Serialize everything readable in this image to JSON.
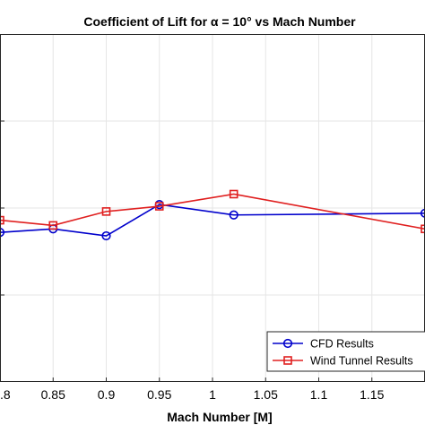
{
  "chart_data": {
    "type": "line",
    "title": "Coefficient of Lift for α = 10° vs Mach Number",
    "xlabel": "Mach Number [M]",
    "ylabel": "",
    "xlim": [
      0.8,
      1.2
    ],
    "xticks": [
      0.8,
      0.85,
      0.9,
      0.95,
      1,
      1.05,
      1.1,
      1.15
    ],
    "xtick_labels": [
      ".8",
      "0.85",
      "0.9",
      "0.95",
      "1",
      "1.05",
      "1.1",
      "1.15"
    ],
    "ylim": [
      0,
      1
    ],
    "grid": true,
    "legend_position": "bottom-right",
    "series": [
      {
        "name": "CFD Results",
        "color": "#0000cc",
        "marker": "circle",
        "x": [
          0.8,
          0.85,
          0.9,
          0.95,
          1.02,
          1.2
        ],
        "y": [
          0.43,
          0.44,
          0.42,
          0.51,
          0.48,
          0.485
        ]
      },
      {
        "name": "Wind Tunnel Results",
        "color": "#e02020",
        "marker": "square",
        "x": [
          0.8,
          0.85,
          0.9,
          0.95,
          1.02,
          1.2
        ],
        "y": [
          0.465,
          0.45,
          0.49,
          0.505,
          0.54,
          0.44
        ]
      }
    ]
  }
}
